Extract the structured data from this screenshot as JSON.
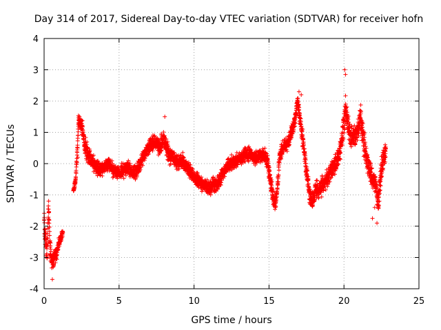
{
  "chart_data": {
    "type": "scatter",
    "title": "Day 314 of 2017, Sidereal Day-to-day VTEC variation (SDTVAR) for receiver hofn",
    "xlabel": "GPS time / hours",
    "ylabel": "SDTVAR / TECUs",
    "xlim": [
      0,
      25
    ],
    "ylim": [
      -4,
      4
    ],
    "xticks": [
      0,
      5,
      10,
      15,
      20,
      25
    ],
    "yticks": [
      -4,
      -3,
      -2,
      -1,
      0,
      1,
      2,
      3,
      4
    ],
    "xtick_labels": [
      "0",
      "5",
      "10",
      "15",
      "20",
      "25"
    ],
    "ytick_labels": [
      "-4",
      "-3",
      "-2",
      "-1",
      "0",
      "1",
      "2",
      "3",
      "4"
    ],
    "grid": true,
    "marker": "+",
    "series": [
      {
        "name": "SDTVAR",
        "color": "#ff0000",
        "profile_x": [
          0.0,
          0.1,
          0.2,
          0.3,
          0.4,
          0.5,
          0.6,
          0.7,
          0.8,
          0.9,
          1.0,
          1.1,
          1.2,
          2.0,
          2.1,
          2.2,
          2.3,
          2.5,
          2.7,
          2.9,
          3.1,
          3.3,
          3.5,
          3.8,
          4.0,
          4.3,
          4.6,
          5.0,
          5.3,
          5.6,
          5.9,
          6.2,
          6.5,
          6.8,
          7.1,
          7.4,
          7.7,
          8.0,
          8.3,
          8.6,
          8.9,
          9.2,
          9.5,
          9.8,
          10.1,
          10.4,
          10.7,
          11.0,
          11.3,
          11.6,
          11.9,
          12.2,
          12.5,
          12.8,
          13.1,
          13.4,
          13.7,
          14.0,
          14.3,
          14.6,
          14.9,
          15.1,
          15.3,
          15.5,
          15.7,
          15.9,
          16.1,
          16.3,
          16.5,
          16.7,
          16.9,
          17.1,
          17.3,
          17.5,
          17.7,
          17.9,
          18.1,
          18.3,
          18.5,
          18.7,
          18.9,
          19.1,
          19.3,
          19.5,
          19.7,
          19.9,
          20.1,
          20.3,
          20.5,
          20.7,
          20.9,
          21.1,
          21.3,
          21.5,
          21.7,
          21.9,
          22.1,
          22.3,
          22.5,
          22.7,
          22.8
        ],
        "profile_y": [
          -1.8,
          -2.5,
          -2.9,
          -1.4,
          -2.7,
          -3.1,
          -3.2,
          -2.9,
          -3.0,
          -2.7,
          -2.5,
          -2.4,
          -2.3,
          -0.8,
          -0.5,
          0.3,
          1.4,
          1.2,
          0.6,
          0.3,
          0.2,
          0.0,
          -0.1,
          -0.2,
          -0.1,
          0.0,
          -0.2,
          -0.3,
          -0.2,
          -0.1,
          -0.3,
          -0.2,
          0.1,
          0.4,
          0.6,
          0.7,
          0.5,
          0.8,
          0.3,
          0.2,
          0.0,
          0.1,
          -0.1,
          -0.3,
          -0.5,
          -0.6,
          -0.7,
          -0.8,
          -0.7,
          -0.6,
          -0.3,
          -0.1,
          0.0,
          0.1,
          0.2,
          0.3,
          0.3,
          0.2,
          0.2,
          0.3,
          0.1,
          -0.6,
          -1.2,
          -1.1,
          0.2,
          0.5,
          0.6,
          0.7,
          1.0,
          1.3,
          2.0,
          1.3,
          0.6,
          -0.3,
          -1.0,
          -1.2,
          -0.8,
          -0.9,
          -0.7,
          -0.6,
          -0.5,
          -0.2,
          -0.1,
          0.0,
          0.3,
          0.9,
          1.8,
          1.2,
          0.8,
          0.9,
          1.0,
          1.6,
          0.7,
          0.2,
          -0.2,
          -0.5,
          -0.6,
          -1.2,
          -0.2,
          0.3,
          0.4
        ],
        "profile_spread": [
          0.5,
          0.6,
          0.6,
          0.6,
          0.5,
          0.4,
          0.4,
          0.4,
          0.3,
          0.3,
          0.2,
          0.2,
          0.2,
          0.1,
          0.2,
          0.2,
          0.3,
          0.4,
          0.4,
          0.35,
          0.35,
          0.3,
          0.3,
          0.3,
          0.3,
          0.3,
          0.3,
          0.3,
          0.3,
          0.3,
          0.3,
          0.3,
          0.3,
          0.3,
          0.3,
          0.3,
          0.4,
          0.4,
          0.4,
          0.35,
          0.3,
          0.3,
          0.3,
          0.3,
          0.3,
          0.3,
          0.3,
          0.3,
          0.3,
          0.3,
          0.3,
          0.3,
          0.3,
          0.3,
          0.3,
          0.3,
          0.3,
          0.3,
          0.3,
          0.3,
          0.3,
          0.4,
          0.4,
          0.4,
          0.4,
          0.3,
          0.3,
          0.3,
          0.3,
          0.3,
          0.3,
          0.3,
          0.4,
          0.4,
          0.4,
          0.4,
          0.4,
          0.4,
          0.4,
          0.4,
          0.4,
          0.4,
          0.4,
          0.4,
          0.4,
          0.5,
          0.6,
          0.5,
          0.5,
          0.5,
          0.5,
          0.6,
          0.6,
          0.5,
          0.5,
          0.5,
          0.5,
          0.5,
          0.5,
          0.4,
          0.3
        ],
        "gaps": [
          [
            1.25,
            1.95
          ],
          [
            23.0,
            25.0
          ]
        ],
        "outliers_x": [
          0.55,
          20.05,
          20.1,
          21.9,
          22.2,
          22.05,
          2.25,
          8.05,
          17.0,
          17.15
        ],
        "outliers_y": [
          -3.7,
          3.0,
          2.85,
          -1.75,
          -1.9,
          -1.4,
          0.2,
          1.5,
          2.3,
          2.2
        ]
      }
    ]
  }
}
